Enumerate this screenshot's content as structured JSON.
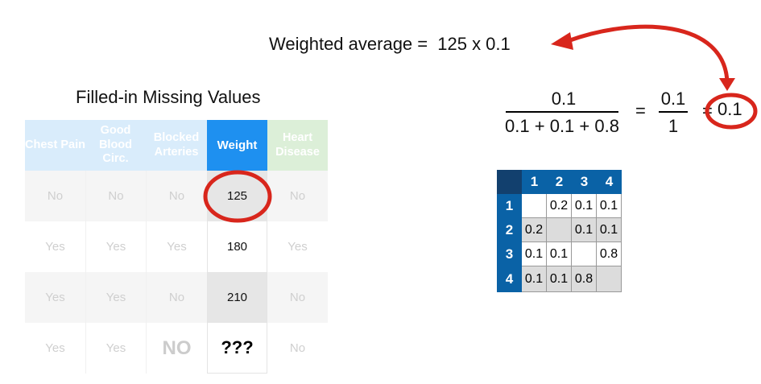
{
  "weighted_average": {
    "label": "Weighted average =",
    "expression": "125 x 0.1"
  },
  "table_title": "Filled-in Missing Values",
  "table": {
    "headers": [
      "Chest Pain",
      "Good Blood Circ.",
      "Blocked Arteries",
      "Weight",
      "Heart Disease"
    ],
    "rows": [
      [
        "No",
        "No",
        "No",
        "125",
        "No"
      ],
      [
        "Yes",
        "Yes",
        "Yes",
        "180",
        "Yes"
      ],
      [
        "Yes",
        "Yes",
        "No",
        "210",
        "No"
      ],
      [
        "Yes",
        "Yes",
        "NO",
        "???",
        "No"
      ]
    ]
  },
  "fraction": {
    "numerator": "0.1",
    "denominator": "0.1 + 0.1 + 0.8",
    "eq1": "=",
    "numerator2": "0.1",
    "denominator2": "1",
    "eq2": "=",
    "result": "0.1"
  },
  "matrix": {
    "col_headers": [
      "1",
      "2",
      "3",
      "4"
    ],
    "row_headers": [
      "1",
      "2",
      "3",
      "4"
    ],
    "cells": [
      [
        "",
        "0.2",
        "0.1",
        "0.1"
      ],
      [
        "0.2",
        "",
        "0.1",
        "0.1"
      ],
      [
        "0.1",
        "0.1",
        "",
        "0.8"
      ],
      [
        "0.1",
        "0.1",
        "0.8",
        ""
      ]
    ]
  },
  "colors": {
    "highlight_red": "#d8261c",
    "weight_header": "#1e90f0",
    "matrix_header": "#0a62a6"
  }
}
